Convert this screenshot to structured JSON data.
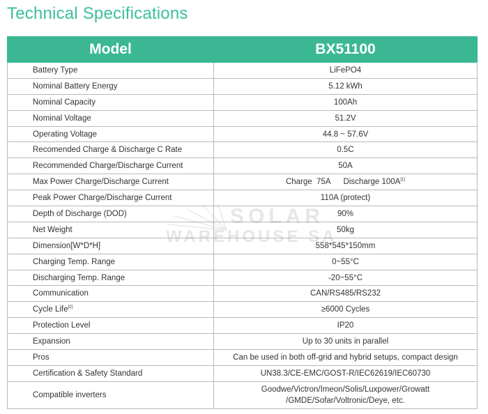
{
  "title": "Technical Specifications",
  "table": {
    "header": {
      "label": "Model",
      "value": "BX51100"
    },
    "rows": [
      {
        "label": "Battery Type",
        "value": "LiFePO4"
      },
      {
        "label": "Nominal Battery Energy",
        "value": "5.12 kWh"
      },
      {
        "label": "Nominal Capacity",
        "value": "100Ah"
      },
      {
        "label": "Nominal Voltage",
        "value": "51.2V"
      },
      {
        "label": "Operating Voltage",
        "value": "44.8 ~ 57.6V"
      },
      {
        "label": "Recomended Charge & Discharge C Rate",
        "value": "0.5C"
      },
      {
        "label": "Recommended Charge/Discharge Current",
        "value": "50A"
      },
      {
        "label": "Max Power Charge/Discharge Current",
        "value_charge": "Charge  75A",
        "value_discharge": "Discharge 100A",
        "value_sup": "[1]"
      },
      {
        "label": "Peak Power Charge/Discharge Current",
        "value": "110A (protect)"
      },
      {
        "label": "Depth of Discharge (DOD)",
        "value": "90%"
      },
      {
        "label": "Net Weight",
        "value": "50kg"
      },
      {
        "label": "Dimension[W*D*H]",
        "value": "558*545*150mm"
      },
      {
        "label": "Charging Temp. Range",
        "value": "0~55°C"
      },
      {
        "label": "Discharging Temp. Range",
        "value": "-20~55°C"
      },
      {
        "label": "Communication",
        "value": "CAN/RS485/RS232"
      },
      {
        "label": "Cycle Life",
        "label_sup": "[2]",
        "value": "≥6000 Cycles"
      },
      {
        "label": "Protection Level",
        "value": "IP20"
      },
      {
        "label": "Expansion",
        "value": "Up to 30 units in parallel"
      },
      {
        "label": "Pros",
        "value": "Can be used in both off-grid and hybrid setups, compact design"
      },
      {
        "label": "Certification & Safety Standard",
        "value": "UN38.3/CE-EMC/GOST-R/IEC62619/IEC60730"
      },
      {
        "label": "Compatible inverters",
        "value_line1": "Goodwe/Victron/Imeon/Solis/Luxpower/Growatt",
        "value_line2": "/GMDE/Sofar/Voltronic/Deye, etc."
      }
    ]
  },
  "watermark": {
    "line1": "SOLAR",
    "line2": "WAREHOUSE SA"
  },
  "colors": {
    "accent": "#3bb893",
    "title": "#3bbf9b",
    "border": "#b8b8b8"
  }
}
